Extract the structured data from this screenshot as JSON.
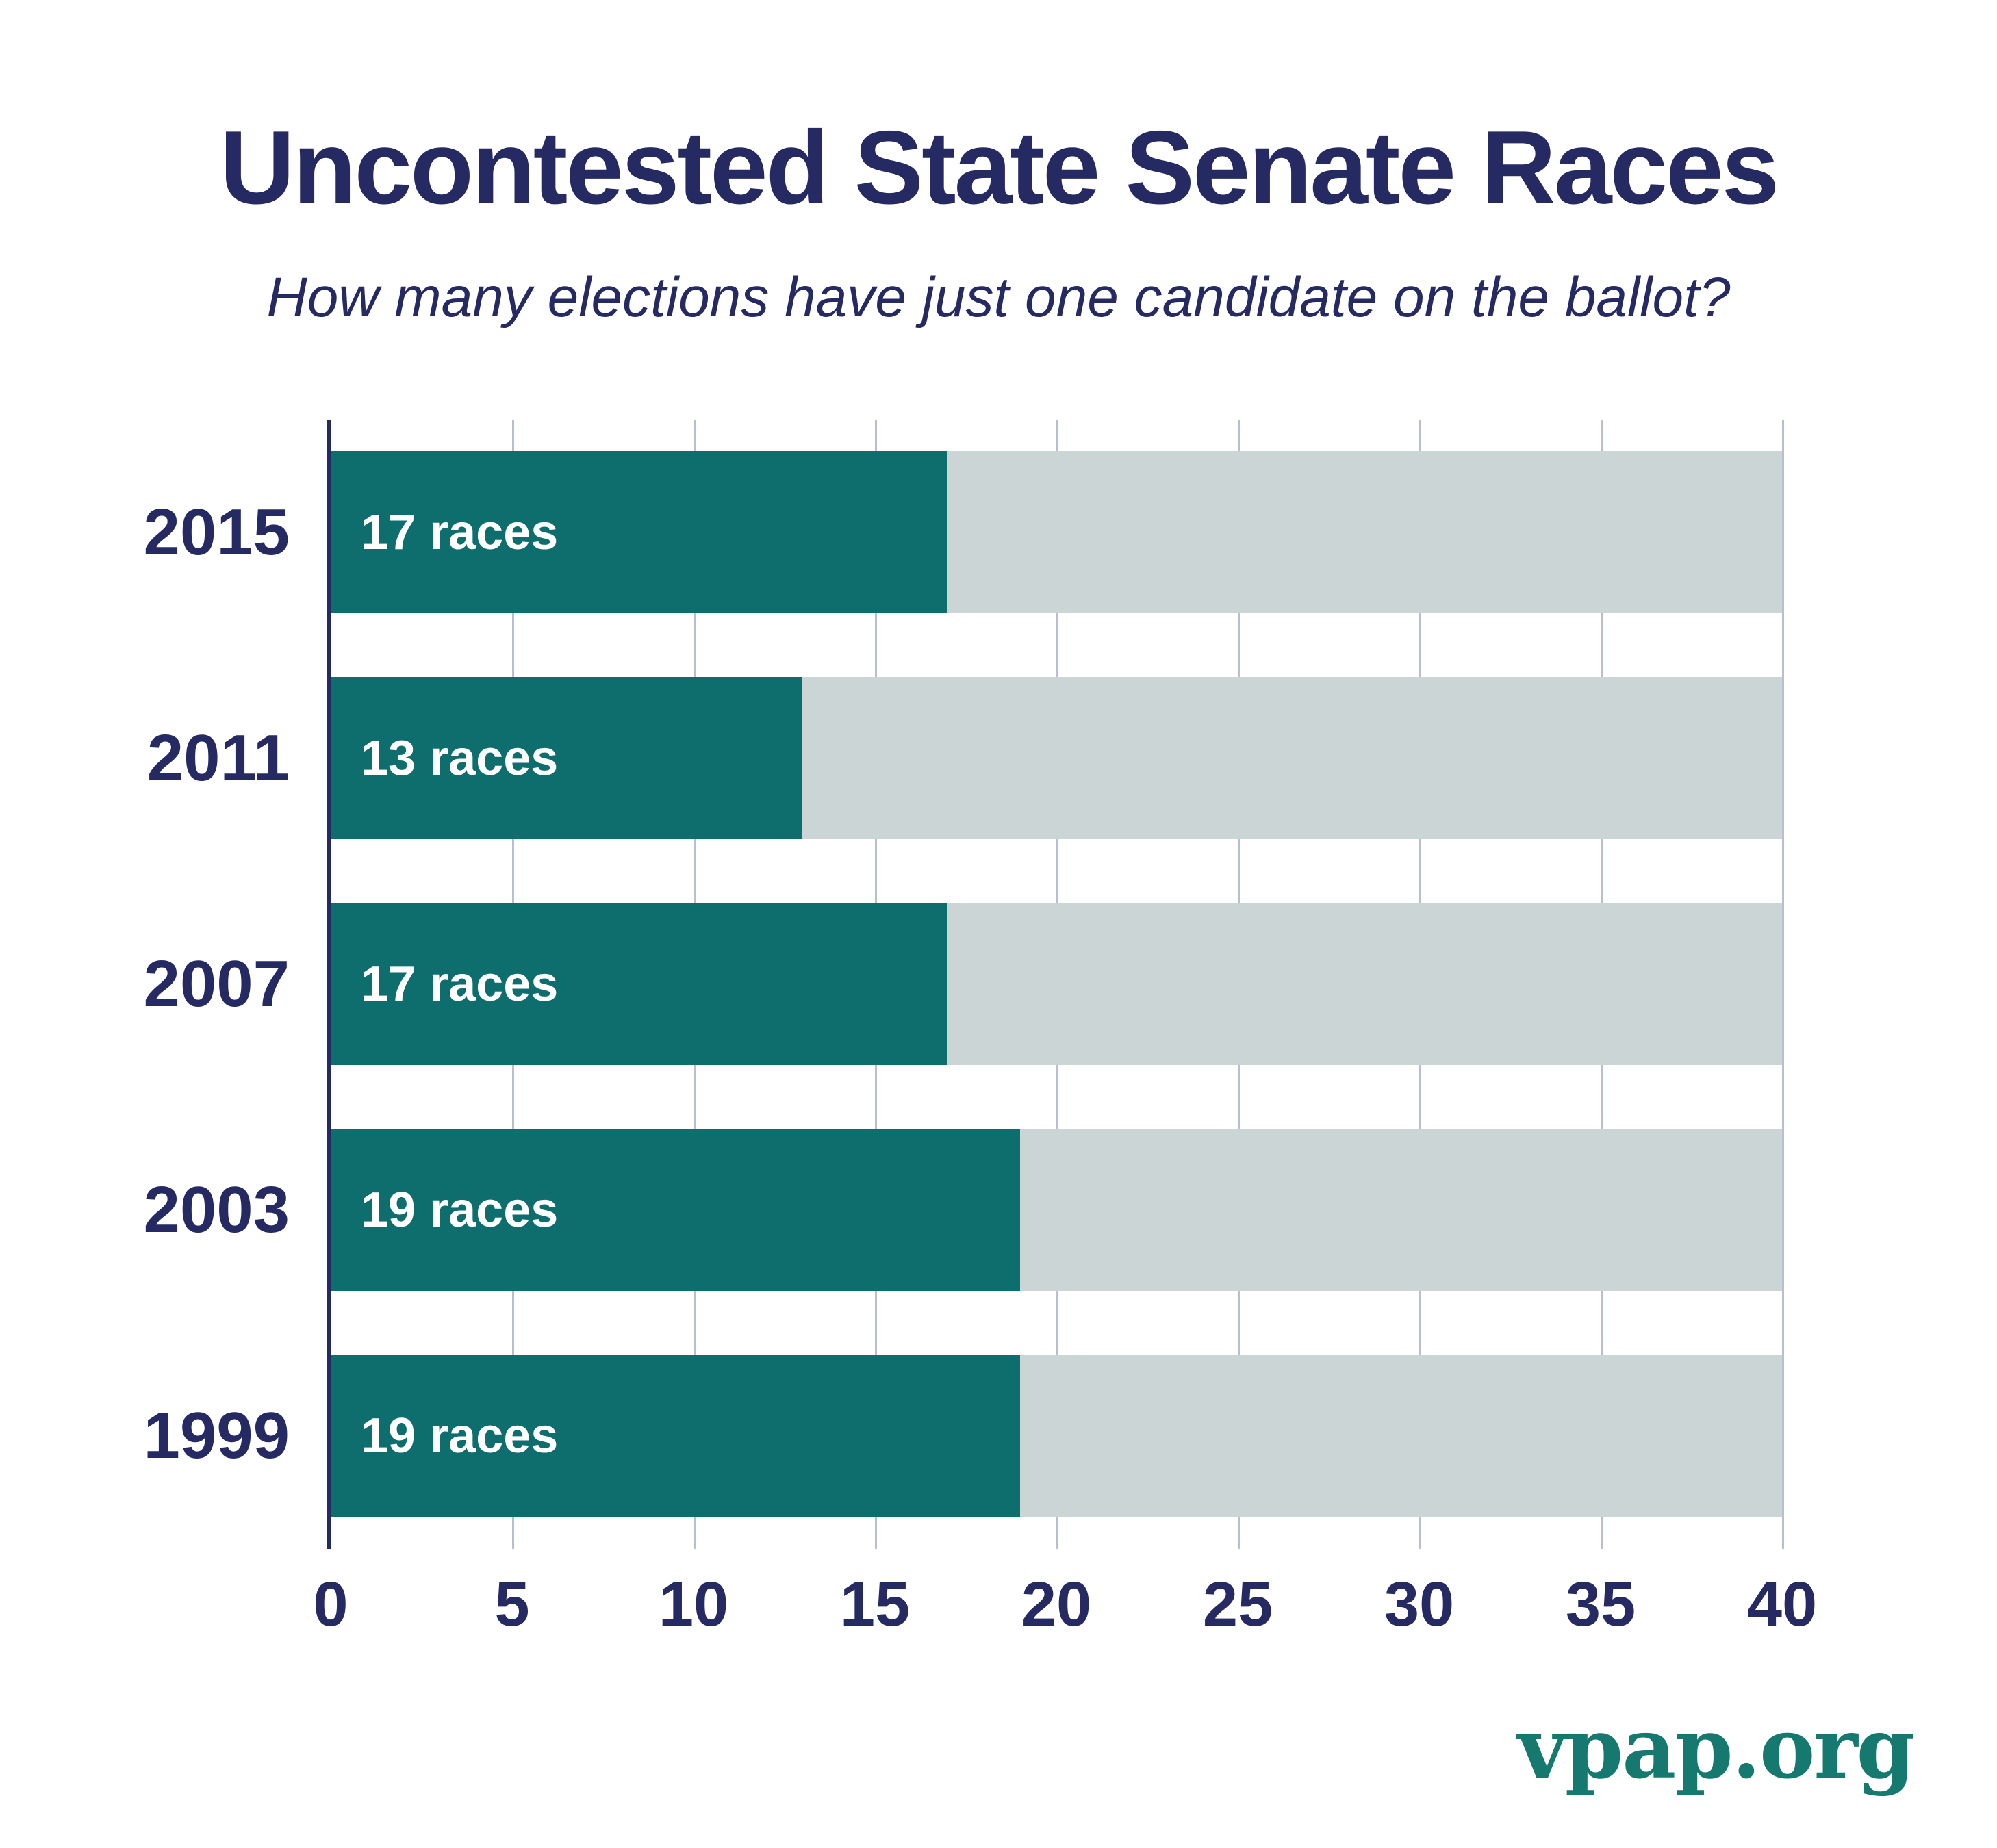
{
  "header": {
    "title": "Uncontested State Senate Races",
    "subtitle": "How many elections have just one candidate on the ballot?"
  },
  "footer": {
    "logo": "vpap.org"
  },
  "chart_data": {
    "type": "bar",
    "orientation": "horizontal",
    "title": "Uncontested State Senate Races",
    "subtitle": "How many elections have just one candidate on the ballot?",
    "categories": [
      "2015",
      "2011",
      "2007",
      "2003",
      "1999"
    ],
    "values": [
      17,
      13,
      17,
      19,
      19
    ],
    "bar_labels": [
      "17 races",
      "13 races",
      "17 races",
      "19 races",
      "19 races"
    ],
    "xlabel": "",
    "ylabel": "",
    "xlim": [
      0,
      40
    ],
    "xticks": [
      0,
      5,
      10,
      15,
      20,
      25,
      30,
      35,
      40
    ],
    "grid": true,
    "legend": false,
    "track_max": 40,
    "colors": {
      "bar": "#0d6e6d",
      "track": "#ccd5d6",
      "gridline": "#b9bdd6",
      "axis": "#262a63",
      "navy": "#262a63",
      "bar_label": "#ffffff",
      "logo": "#15796f"
    }
  }
}
